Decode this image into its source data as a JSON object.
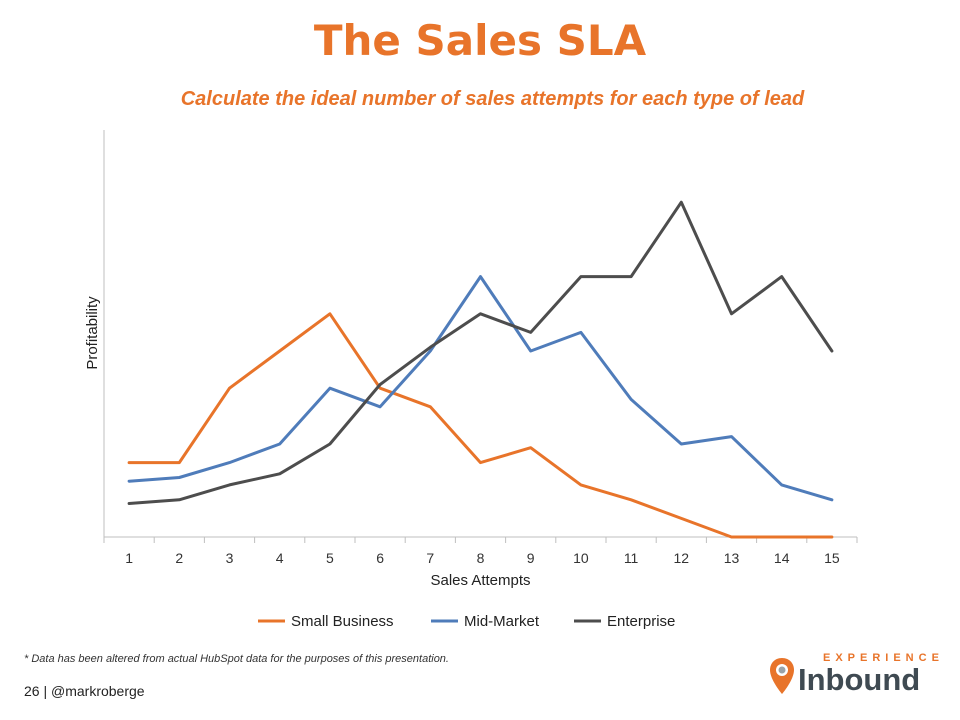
{
  "title": "The Sales SLA",
  "subtitle": "Calculate the ideal number of sales attempts for each type of lead",
  "footnote": "* Data has been altered from actual HubSpot data for the purposes of this presentation.",
  "page_number": "26",
  "separator": "|",
  "handle": "@markroberge",
  "logo": {
    "top": "EXPERIENCE",
    "main": "Inbound"
  },
  "chart_data": {
    "type": "line",
    "title": "",
    "xlabel": "Sales Attempts",
    "ylabel": "Profitability",
    "x": [
      1,
      2,
      3,
      4,
      5,
      6,
      7,
      8,
      9,
      10,
      11,
      12,
      13,
      14,
      15
    ],
    "ylim": [
      0,
      100
    ],
    "grid": false,
    "legend": "bottom",
    "series": [
      {
        "name": "Small Business",
        "color": "#e8742a",
        "values": [
          20,
          20,
          40,
          50,
          60,
          40,
          35,
          20,
          24,
          14,
          10,
          5,
          0,
          0,
          0
        ]
      },
      {
        "name": "Mid-Market",
        "color": "#4f7cba",
        "values": [
          15,
          16,
          20,
          25,
          40,
          35,
          50,
          70,
          50,
          55,
          37,
          25,
          27,
          14,
          10
        ]
      },
      {
        "name": "Enterprise",
        "color": "#4d4d4d",
        "values": [
          9,
          10,
          14,
          17,
          25,
          41,
          51,
          60,
          55,
          70,
          70,
          90,
          60,
          70,
          50
        ]
      }
    ]
  }
}
